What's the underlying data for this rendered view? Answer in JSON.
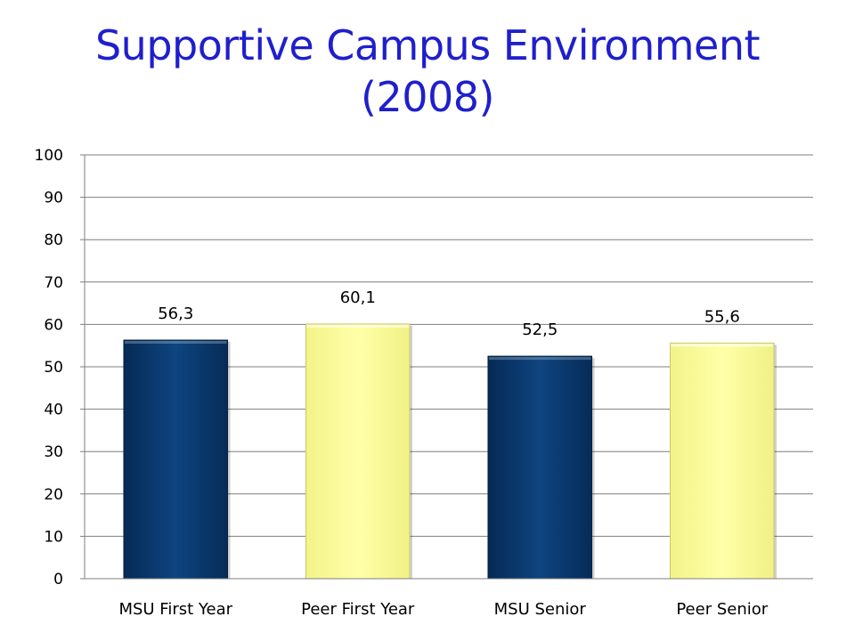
{
  "slide": {
    "title_line1": "Supportive Campus Environment",
    "title_line2": "(2008)"
  },
  "colors": {
    "title": "#1f1fcc",
    "msu_bar": "#0b3a6e",
    "peer_bar": "#ffff99",
    "gridline": "#7f7f7f"
  },
  "chart_data": {
    "type": "bar",
    "title": "",
    "xlabel": "",
    "ylabel": "",
    "categories": [
      "MSU First Year",
      "Peer First Year",
      "MSU Senior",
      "Peer Senior"
    ],
    "values": [
      56.3,
      60.1,
      52.5,
      55.6
    ],
    "value_labels": [
      "56,3",
      "60,1",
      "52,5",
      "55,6"
    ],
    "bar_colors": [
      "#0b3a6e",
      "#ffff99",
      "#0b3a6e",
      "#ffff99"
    ],
    "ylim": [
      0,
      100
    ],
    "yticks": [
      0,
      10,
      20,
      30,
      40,
      50,
      60,
      70,
      80,
      90,
      100
    ],
    "ytick_labels": [
      "0",
      "10",
      "20",
      "30",
      "40",
      "50",
      "60",
      "70",
      "80",
      "90",
      "100"
    ],
    "grid": true,
    "legend": "none"
  }
}
